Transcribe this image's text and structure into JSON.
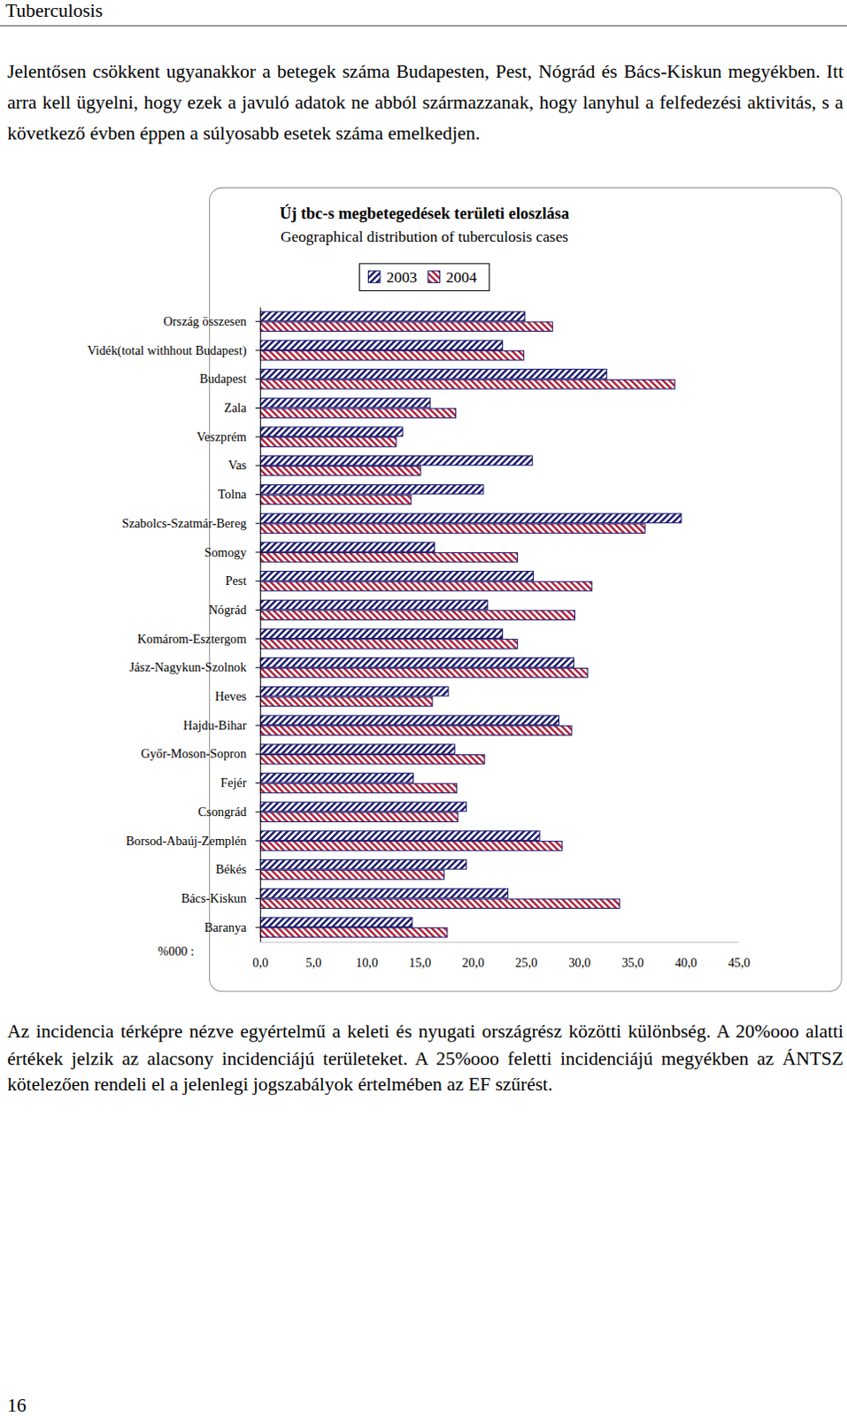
{
  "header": "Tuberculosis",
  "text_before": "Jelentősen csökkent ugyanakkor a betegek száma Budapesten, Pest, Nógrád és Bács-Kiskun megyékben. Itt arra kell ügyelni, hogy ezek a javuló adatok ne abból származzanak, hogy lanyhul a felfedezési aktivitás, s a következő évben éppen a súlyosabb esetek száma emelkedjen.",
  "chart_data": {
    "type": "bar",
    "orientation": "horizontal",
    "title": "Új tbc-s megbetegedések területi eloszlása",
    "subtitle": "Geographical distribution of tuberculosis cases",
    "xlabel": "%000 :",
    "legend": "top",
    "categories": [
      "Ország összesen",
      "Vidék(total withhout Budapest)",
      "Budapest",
      "Zala",
      "Veszprém",
      "Vas",
      "Tolna",
      "Szabolcs-Szatmár-Bereg",
      "Somogy",
      "Pest",
      "Nógrád",
      "Komárom-Esztergom",
      "Jász-Nagykun-Szolnok",
      "Heves",
      "Hajdu-Bihar",
      "Győr-Moson-Sopron",
      "Fejér",
      "Csongrád",
      "Borsod-Abaúj-Zemplén",
      "Békés",
      "Bács-Kiskun",
      "Baranya"
    ],
    "series": [
      {
        "name": "2003",
        "color": "#1a1a6e",
        "values": [
          24.9,
          22.8,
          32.6,
          16.0,
          13.4,
          25.6,
          21.0,
          39.6,
          16.4,
          25.7,
          21.4,
          22.8,
          29.5,
          17.7,
          28.1,
          18.3,
          14.4,
          19.4,
          26.3,
          19.4,
          23.3,
          14.3
        ]
      },
      {
        "name": "2004",
        "color": "#b0203a",
        "values": [
          27.5,
          24.8,
          39.0,
          18.4,
          12.8,
          15.1,
          14.2,
          36.2,
          24.2,
          31.2,
          29.6,
          24.2,
          30.8,
          16.2,
          29.3,
          21.1,
          18.5,
          18.6,
          28.4,
          17.3,
          33.8,
          17.6
        ]
      }
    ],
    "xlim": [
      0,
      45
    ],
    "xticks": [
      {
        "value": 0,
        "label": "0,0"
      },
      {
        "value": 5,
        "label": "5,0"
      },
      {
        "value": 10,
        "label": "10,0"
      },
      {
        "value": 15,
        "label": "15,0"
      },
      {
        "value": 20,
        "label": "20,0"
      },
      {
        "value": 25,
        "label": "25,0"
      },
      {
        "value": 30,
        "label": "30,0"
      },
      {
        "value": 35,
        "label": "35,0"
      },
      {
        "value": 40,
        "label": "40,0"
      },
      {
        "value": 45,
        "label": "45,0"
      }
    ]
  },
  "text_after": "Az incidencia térképre nézve egyértelmű a keleti és nyugati országrész közötti különbség. A 20%ooo alatti értékek jelzik az alacsony incidenciájú területeket. A 25%ooo feletti incidenciájú megyékben az ÁNTSZ kötelezően rendeli el a jelenlegi jogszabályok értelmében az EF szűrést.",
  "page_number": "16"
}
